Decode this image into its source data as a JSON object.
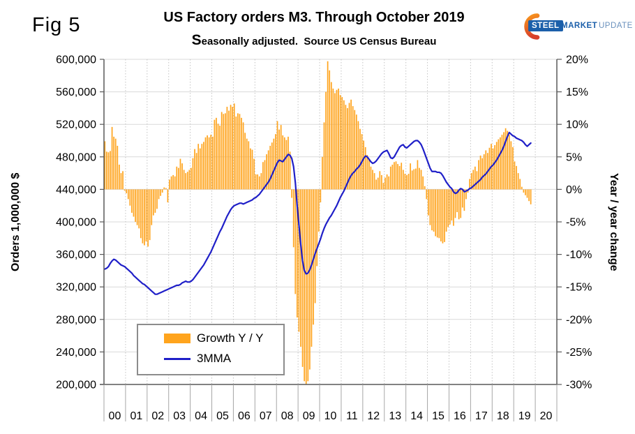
{
  "figure_label": "Fig 5",
  "header": {
    "title": "US Factory orders M3. Through October 2019",
    "subtitle": "Seasonally adjusted.  Source US Census Bureau"
  },
  "logo": {
    "steel": "STEEL",
    "market": "MARKET",
    "update": "UPDATE"
  },
  "legend": {
    "items": [
      {
        "label": "Growth Y / Y",
        "swatch": "orange-rect"
      },
      {
        "label": "3MMA",
        "swatch": "blue-line"
      }
    ]
  },
  "colors": {
    "bar_orange": "#FFA41D",
    "line_blue": "#1F1FC8",
    "grid_gray": "#D9D9D9",
    "dotted_gray": "#C3C3C3",
    "axis_gray": "#595959",
    "tick_gray": "#A6A6A6"
  },
  "chart_data": {
    "type": "bar+line",
    "title": "US Factory orders M3. Through October 2019",
    "subtitle": "Seasonally adjusted.  Source US Census Bureau",
    "months_plotted": 238,
    "last_month": "October 2019",
    "x_year_labels": [
      "00",
      "01",
      "02",
      "03",
      "04",
      "05",
      "06",
      "07",
      "08",
      "09",
      "10",
      "11",
      "12",
      "13",
      "14",
      "15",
      "16",
      "17",
      "18",
      "19",
      "20"
    ],
    "left_axis": {
      "label": "Orders 1,000,000 $",
      "min": 200000,
      "max": 600000,
      "tick_step": 40000,
      "tick_labels": [
        "600,000",
        "560,000",
        "520,000",
        "480,000",
        "440,000",
        "400,000",
        "360,000",
        "320,000",
        "280,000",
        "240,000",
        "200,000"
      ]
    },
    "right_axis": {
      "label": "Year / year change",
      "min": -30,
      "max": 20,
      "tick_step": 5,
      "tick_labels": [
        "20%",
        "15%",
        "10%",
        "5%",
        "0%",
        "-5%",
        "-10%",
        "-15%",
        "-20%",
        "-25%",
        "-30%"
      ]
    },
    "grid": {
      "horizontal": "solid",
      "vertical": "dotted-yearly"
    },
    "legend_position": "inside-lower-left",
    "series": [
      {
        "name": "Growth Y / Y",
        "type": "bar",
        "axis": "right",
        "unit": "percent",
        "color": "#FFA41D",
        "values_by_year": {
          "2000": [
            7.4,
            5.8,
            5.7,
            5.9,
            9.6,
            8.1,
            7.8,
            6.7,
            3.8,
            2.5,
            2.8,
            -0.2
          ],
          "2001": [
            -0.6,
            -1.5,
            -2.5,
            -3.6,
            -4.2,
            -5.0,
            -5.5,
            -6.0,
            -7.5,
            -8.3,
            -8.6,
            -8.0
          ],
          "2002": [
            -8.8,
            -7.8,
            -5.5,
            -4.0,
            -3.6,
            -3.0,
            -1.5,
            -1.0,
            -0.5,
            0.3,
            0.2,
            -2.0
          ],
          "2003": [
            1.5,
            2.0,
            2.2,
            2.0,
            3.5,
            3.3,
            4.7,
            4.0,
            3.0,
            2.5,
            2.7,
            3.0
          ],
          "2004": [
            3.3,
            4.8,
            6.2,
            5.6,
            7.0,
            6.3,
            7.0,
            7.3,
            8.0,
            8.3,
            8.0,
            8.4
          ],
          "2005": [
            8.1,
            10.7,
            11.0,
            10.1,
            9.8,
            11.9,
            11.6,
            11.7,
            12.7,
            12.1,
            13.0,
            12.7
          ],
          "2006": [
            13.2,
            11.2,
            11.7,
            11.6,
            11.0,
            10.3,
            8.7,
            7.8,
            7.4,
            6.3,
            6.1,
            4.7
          ],
          "2007": [
            2.3,
            2.3,
            2.0,
            2.5,
            4.2,
            4.5,
            5.4,
            6.0,
            6.7,
            7.2,
            7.8,
            8.5
          ],
          "2008": [
            10.5,
            9.2,
            9.9,
            8.3,
            8.0,
            7.6,
            8.1,
            5.8,
            -1.3,
            -8.9,
            -16.1,
            -19.7
          ],
          "2009": [
            -21.9,
            -24.2,
            -27.3,
            -29.5,
            -30.0,
            -29.5,
            -27.7,
            -24.2,
            -20.8,
            -17.5,
            -11.8,
            -6.5
          ],
          "2010": [
            -2.0,
            5.0,
            10.3,
            15.0,
            19.7,
            18.3,
            16.5,
            15.5,
            14.8,
            15.3,
            15.5,
            14.5
          ],
          "2011": [
            14.2,
            13.7,
            13.0,
            12.5,
            13.3,
            13.8,
            12.8,
            12.2,
            11.5,
            10.5,
            9.3,
            8.5
          ],
          "2012": [
            7.5,
            6.5,
            5.3,
            4.6,
            3.5,
            3.0,
            2.5,
            1.5,
            1.8,
            2.8,
            2.2,
            1.0
          ],
          "2013": [
            1.8,
            2.3,
            2.0,
            3.5,
            3.8,
            4.2,
            4.3,
            3.9,
            3.6,
            4.1,
            3.0,
            2.4
          ],
          "2014": [
            2.2,
            2.4,
            4.0,
            2.9,
            3.1,
            3.2,
            4.5,
            3.3,
            3.0,
            2.0,
            0.5,
            -1.5
          ],
          "2015": [
            -4.0,
            -5.5,
            -6.3,
            -6.5,
            -7.2,
            -7.4,
            -7.5,
            -8.0,
            -8.3,
            -8.1,
            -6.5,
            -5.8
          ],
          "2016": [
            -5.4,
            -4.8,
            -5.6,
            -4.4,
            -3.5,
            -4.6,
            -4.4,
            -2.8,
            -3.3,
            -1.5,
            -0.5,
            1.6
          ],
          "2017": [
            2.5,
            3.0,
            3.5,
            2.8,
            4.5,
            5.2,
            4.8,
            5.4,
            6.0,
            5.6,
            6.4,
            7.0
          ],
          "2018": [
            6.3,
            6.8,
            7.3,
            7.7,
            8.0,
            8.4,
            8.8,
            9.4,
            9.0,
            8.4,
            7.4,
            6.5
          ],
          "2019": [
            4.3,
            3.6,
            2.5,
            1.6,
            0.4,
            -0.5,
            -0.9,
            -1.3,
            -1.8,
            -2.3
          ]
        }
      },
      {
        "name": "3MMA",
        "type": "line",
        "axis": "left",
        "unit": "million USD",
        "color": "#1F1FC8",
        "values_by_year": {
          "2000": [
            342000,
            343000,
            345000,
            349000,
            352000,
            354000,
            353000,
            351000,
            349000,
            347000,
            346000,
            345000
          ],
          "2001": [
            343000,
            341000,
            339000,
            337000,
            334000,
            332000,
            330000,
            328000,
            326000,
            324000,
            323000,
            321000
          ],
          "2002": [
            319000,
            317000,
            315000,
            313000,
            311000,
            311000,
            312000,
            313000,
            314000,
            315000,
            316000,
            317000
          ],
          "2003": [
            318000,
            319000,
            320000,
            321000,
            322000,
            322000,
            323000,
            325000,
            326000,
            327000,
            326000,
            326000
          ],
          "2004": [
            327000,
            329000,
            332000,
            335000,
            338000,
            341000,
            344000,
            347000,
            351000,
            355000,
            359000,
            363000
          ],
          "2005": [
            368000,
            373000,
            378000,
            383000,
            388000,
            392000,
            397000,
            402000,
            407000,
            411000,
            415000,
            418000
          ],
          "2006": [
            420000,
            421000,
            422000,
            423000,
            423000,
            422000,
            423000,
            424000,
            425000,
            426000,
            427000,
            429000
          ],
          "2007": [
            430000,
            432000,
            434000,
            437000,
            440000,
            443000,
            446000,
            449000,
            453000,
            458000,
            463000,
            468000
          ],
          "2008": [
            473000,
            476000,
            475000,
            474000,
            477000,
            480000,
            483000,
            482000,
            478000,
            468000,
            448000,
            420000
          ],
          "2009": [
            396000,
            372000,
            352000,
            340000,
            336000,
            337000,
            341000,
            347000,
            354000,
            361000,
            367000,
            373000
          ],
          "2010": [
            379000,
            386000,
            392000,
            397000,
            401000,
            405000,
            408000,
            412000,
            416000,
            420000,
            425000,
            430000
          ],
          "2011": [
            434000,
            438000,
            443000,
            448000,
            453000,
            457000,
            460000,
            462000,
            465000,
            467000,
            470000,
            474000
          ],
          "2012": [
            478000,
            481000,
            480000,
            477000,
            474000,
            472000,
            473000,
            475000,
            478000,
            481000,
            484000,
            486000
          ],
          "2013": [
            487000,
            488000,
            484000,
            479000,
            478000,
            480000,
            484000,
            488000,
            492000,
            494000,
            495000,
            492000
          ],
          "2014": [
            491000,
            493000,
            495000,
            497000,
            499000,
            500000,
            500000,
            498000,
            495000,
            490000,
            484000,
            478000
          ],
          "2015": [
            472000,
            466000,
            462000,
            462000,
            462000,
            461000,
            461000,
            460000,
            457000,
            453000,
            449000,
            446000
          ],
          "2016": [
            443000,
            441000,
            437000,
            435000,
            436000,
            439000,
            441000,
            440000,
            437000,
            438000,
            439000,
            441000
          ],
          "2017": [
            442000,
            444000,
            446000,
            448000,
            450000,
            452000,
            455000,
            457000,
            459000,
            462000,
            465000,
            468000
          ],
          "2018": [
            470000,
            473000,
            476000,
            480000,
            484000,
            488000,
            493000,
            499000,
            505000,
            510000,
            508000,
            506000
          ],
          "2019": [
            505000,
            503000,
            502000,
            501000,
            500000,
            498000,
            495000,
            493000,
            495000,
            497000
          ]
        }
      }
    ]
  }
}
